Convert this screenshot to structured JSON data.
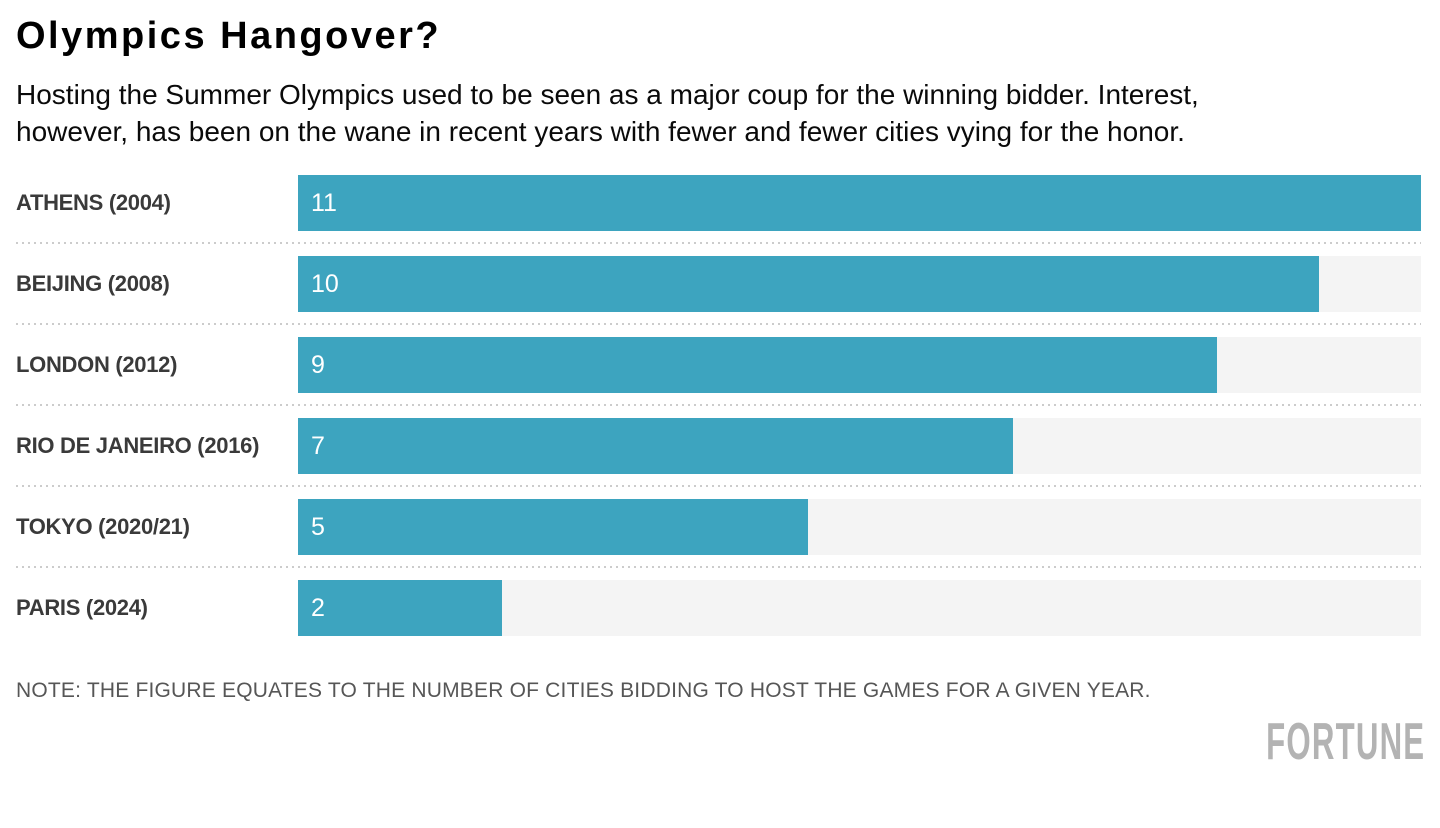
{
  "header": {
    "title": "Olympics Hangover?",
    "subtitle": "Hosting the Summer Olympics used to be seen as a major coup for the winning bidder. Interest, however, has been on the wane in recent years with fewer and fewer cities vying for the honor.",
    "subtitle_lines": [
      "Hosting the Summer Olympics used to be seen as a major coup for the winning bidder. Interest,",
      "however, has been on the wane in recent years with fewer and fewer cities vying for the honor."
    ]
  },
  "chart_data": {
    "type": "bar",
    "orientation": "horizontal",
    "title": "Olympics Hangover?",
    "categories": [
      "ATHENS (2004)",
      "BEIJING (2008)",
      "LONDON (2012)",
      "RIO DE JANEIRO (2016)",
      "TOKYO (2020/21)",
      "PARIS (2024)"
    ],
    "values": [
      11,
      10,
      9,
      7,
      5,
      2
    ],
    "xlim": [
      0,
      11
    ],
    "value_labels": [
      "11",
      "10",
      "9",
      "7",
      "5",
      "2"
    ],
    "value_labels_inside": true,
    "grid": false,
    "legend": "none",
    "bar_color": "#3da4bf",
    "track_color": "#f4f4f4",
    "separator_color": "#cccccc"
  },
  "footer": {
    "note": "NOTE: THE FIGURE EQUATES TO THE NUMBER OF CITIES BIDDING TO HOST THE GAMES FOR A GIVEN YEAR.",
    "brand": "FORTUNE"
  }
}
